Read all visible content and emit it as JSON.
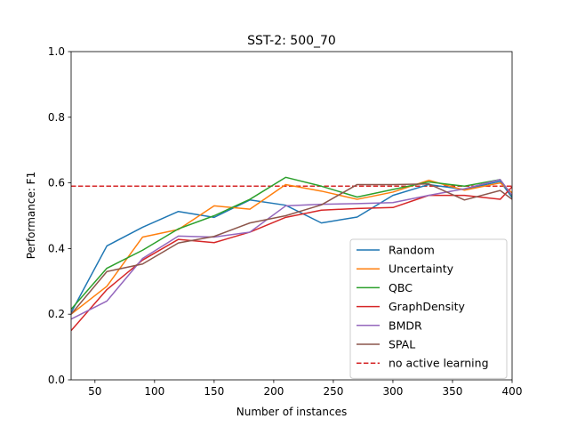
{
  "chart_data": {
    "type": "line",
    "title": "SST-2: 500_70",
    "xlabel": "Number of instances",
    "ylabel": "Performance: F1",
    "xlim": [
      30,
      400
    ],
    "ylim": [
      0.0,
      1.0
    ],
    "xticks": [
      50,
      100,
      150,
      200,
      250,
      300,
      350,
      400
    ],
    "yticks": [
      0.0,
      0.2,
      0.4,
      0.6,
      0.8,
      1.0
    ],
    "x": [
      30,
      60,
      90,
      120,
      150,
      180,
      210,
      240,
      270,
      300,
      330,
      360,
      390,
      400
    ],
    "grid": false,
    "legend_position": "lower-right",
    "series": [
      {
        "name": "Random",
        "color": "#1f77b4",
        "values": [
          0.205,
          0.408,
          0.465,
          0.513,
          0.495,
          0.548,
          0.532,
          0.478,
          0.496,
          0.562,
          0.595,
          0.58,
          0.605,
          0.555
        ]
      },
      {
        "name": "Uncertainty",
        "color": "#ff7f0e",
        "values": [
          0.2,
          0.285,
          0.435,
          0.458,
          0.53,
          0.52,
          0.595,
          0.575,
          0.55,
          0.572,
          0.608,
          0.578,
          0.6,
          0.57
        ]
      },
      {
        "name": "QBC",
        "color": "#2ca02c",
        "values": [
          0.215,
          0.34,
          0.395,
          0.46,
          0.5,
          0.55,
          0.617,
          0.59,
          0.557,
          0.58,
          0.603,
          0.59,
          0.61,
          0.56
        ]
      },
      {
        "name": "GraphDensity",
        "color": "#d62728",
        "values": [
          0.15,
          0.275,
          0.365,
          0.428,
          0.418,
          0.45,
          0.495,
          0.517,
          0.522,
          0.525,
          0.562,
          0.562,
          0.55,
          0.588
        ]
      },
      {
        "name": "BMDR",
        "color": "#9467bd",
        "values": [
          0.185,
          0.24,
          0.37,
          0.438,
          0.435,
          0.45,
          0.53,
          0.535,
          0.537,
          0.54,
          0.562,
          0.582,
          0.61,
          0.562
        ]
      },
      {
        "name": "SPAL",
        "color": "#8c564b",
        "values": [
          0.2,
          0.33,
          0.353,
          0.417,
          0.437,
          0.478,
          0.5,
          0.533,
          0.595,
          0.595,
          0.597,
          0.548,
          0.577,
          0.55
        ]
      }
    ],
    "reference_line": {
      "name": "no active learning",
      "color": "#d62728",
      "value": 0.59,
      "style": "dashed"
    }
  }
}
